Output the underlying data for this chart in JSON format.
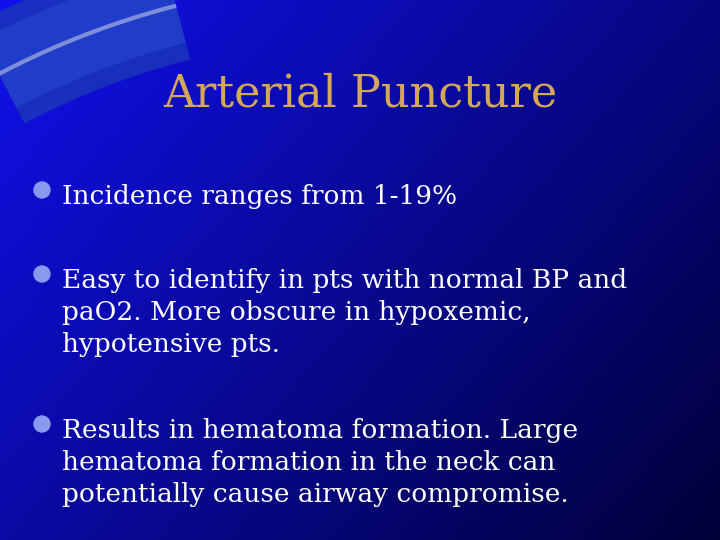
{
  "title": "Arterial Puncture",
  "title_color": "#D4A855",
  "title_fontsize": 32,
  "bg_color_bright": "#1111ee",
  "bg_color_dark": "#00003a",
  "bullet_color": "#8899ee",
  "text_color": "#ffffff",
  "text_fontsize": 19,
  "bullets": [
    "Incidence ranges from 1-19%",
    "Easy to identify in pts with normal BP and\npaO2. More obscure in hypoxemic,\nhypotensive pts.",
    "Results in hematoma formation. Large\nhematoma formation in the neck can\npotentially cause airway compromise."
  ],
  "arc1_color": "#2244cc",
  "arc2_color": "#3355dd",
  "arc_thin_color": "#aabbff"
}
